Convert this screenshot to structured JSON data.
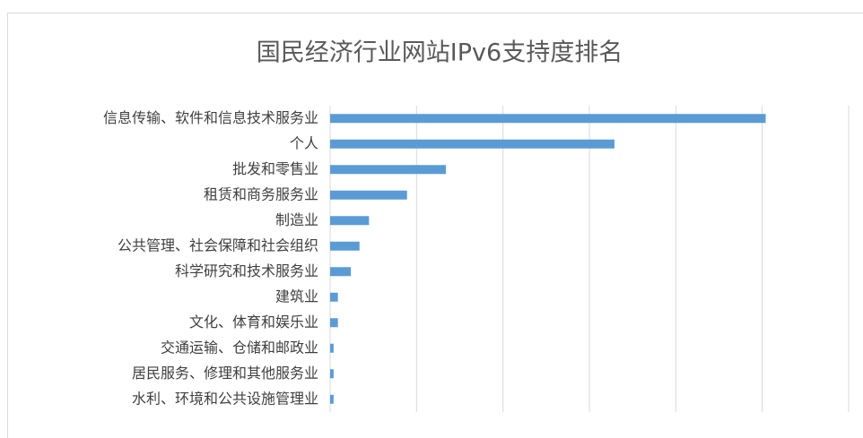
{
  "chart_data": {
    "type": "barh",
    "title": "国民经济行业网站IPv6支持度排名",
    "categories": [
      "信息传输、软件和信息技术服务业",
      "个人",
      "批发和零售业",
      "租赁和商务服务业",
      "制造业",
      "公共管理、社会保障和社会组织",
      "科学研究和技术服务业",
      "建筑业",
      "文化、体育和娱乐业",
      "交通运输、仓储和邮政业",
      "居民服务、修理和其他服务业",
      "水利、环境和公共设施管理业"
    ],
    "values": [
      5.04,
      3.29,
      1.34,
      0.89,
      0.45,
      0.34,
      0.24,
      0.09,
      0.09,
      0.04,
      0.04,
      0.04
    ],
    "color": "#5b9bd5",
    "xlim": [
      0,
      6
    ],
    "xticks": [
      0,
      1,
      2,
      3,
      4,
      5,
      6
    ],
    "grid": true
  }
}
